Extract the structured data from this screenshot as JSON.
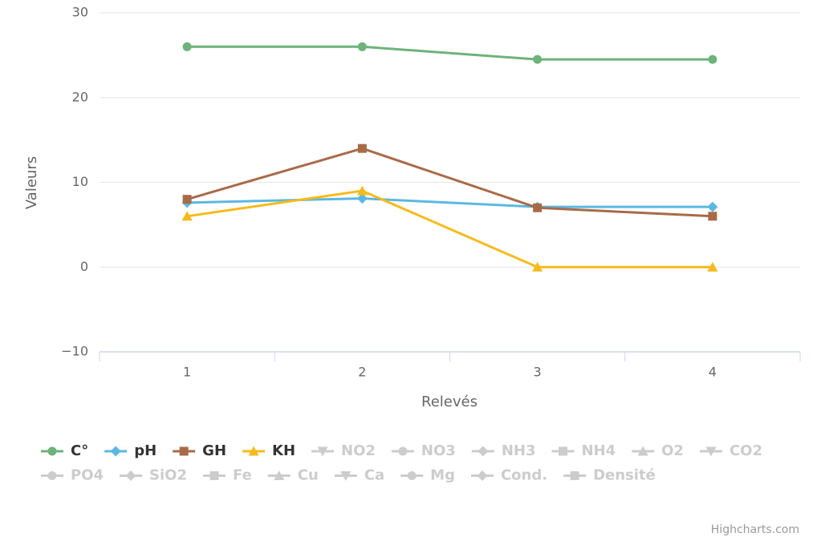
{
  "chart_data": {
    "type": "line",
    "categories": [
      "1",
      "2",
      "3",
      "4"
    ],
    "xlabel": "Relevés",
    "ylabel": "Valeurs",
    "ylim": [
      -10,
      30
    ],
    "yticks": [
      {
        "value": -10,
        "label": "−10"
      },
      0,
      10,
      20,
      30
    ],
    "grid": true,
    "legend": "bottom",
    "credits": "Highcharts.com",
    "series": [
      {
        "name": "C°",
        "color": "#6db37a",
        "marker": "circle",
        "visible": true,
        "values": [
          26,
          26,
          24.5,
          24.5
        ]
      },
      {
        "name": "pH",
        "color": "#5bb8e0",
        "marker": "diamond",
        "visible": true,
        "values": [
          7.6,
          8.1,
          7.1,
          7.1
        ]
      },
      {
        "name": "GH",
        "color": "#a86b48",
        "marker": "square",
        "visible": true,
        "values": [
          8,
          14,
          7,
          6
        ]
      },
      {
        "name": "KH",
        "color": "#f5bb1c",
        "marker": "triangle",
        "visible": true,
        "values": [
          6,
          9,
          0,
          0
        ]
      },
      {
        "name": "NO2",
        "marker": "triangle-down",
        "visible": false,
        "values": [
          null,
          null,
          null,
          null
        ]
      },
      {
        "name": "NO3",
        "marker": "circle",
        "visible": false,
        "values": [
          null,
          null,
          null,
          null
        ]
      },
      {
        "name": "NH3",
        "marker": "diamond",
        "visible": false,
        "values": [
          null,
          null,
          null,
          null
        ]
      },
      {
        "name": "NH4",
        "marker": "square",
        "visible": false,
        "values": [
          null,
          null,
          null,
          null
        ]
      },
      {
        "name": "O2",
        "marker": "triangle",
        "visible": false,
        "values": [
          null,
          null,
          null,
          null
        ]
      },
      {
        "name": "CO2",
        "marker": "triangle-down",
        "visible": false,
        "values": [
          null,
          null,
          null,
          null
        ]
      },
      {
        "name": "PO4",
        "marker": "circle",
        "visible": false,
        "values": [
          null,
          null,
          null,
          null
        ]
      },
      {
        "name": "SiO2",
        "marker": "diamond",
        "visible": false,
        "values": [
          null,
          null,
          null,
          null
        ]
      },
      {
        "name": "Fe",
        "marker": "square",
        "visible": false,
        "values": [
          null,
          null,
          null,
          null
        ]
      },
      {
        "name": "Cu",
        "marker": "triangle",
        "visible": false,
        "values": [
          null,
          null,
          null,
          null
        ]
      },
      {
        "name": "Ca",
        "marker": "triangle-down",
        "visible": false,
        "values": [
          null,
          null,
          null,
          null
        ]
      },
      {
        "name": "Mg",
        "marker": "circle",
        "visible": false,
        "values": [
          null,
          null,
          null,
          null
        ]
      },
      {
        "name": "Cond.",
        "marker": "diamond",
        "visible": false,
        "values": [
          null,
          null,
          null,
          null
        ]
      },
      {
        "name": "Densité",
        "marker": "square",
        "visible": false,
        "values": [
          null,
          null,
          null,
          null
        ]
      }
    ]
  }
}
